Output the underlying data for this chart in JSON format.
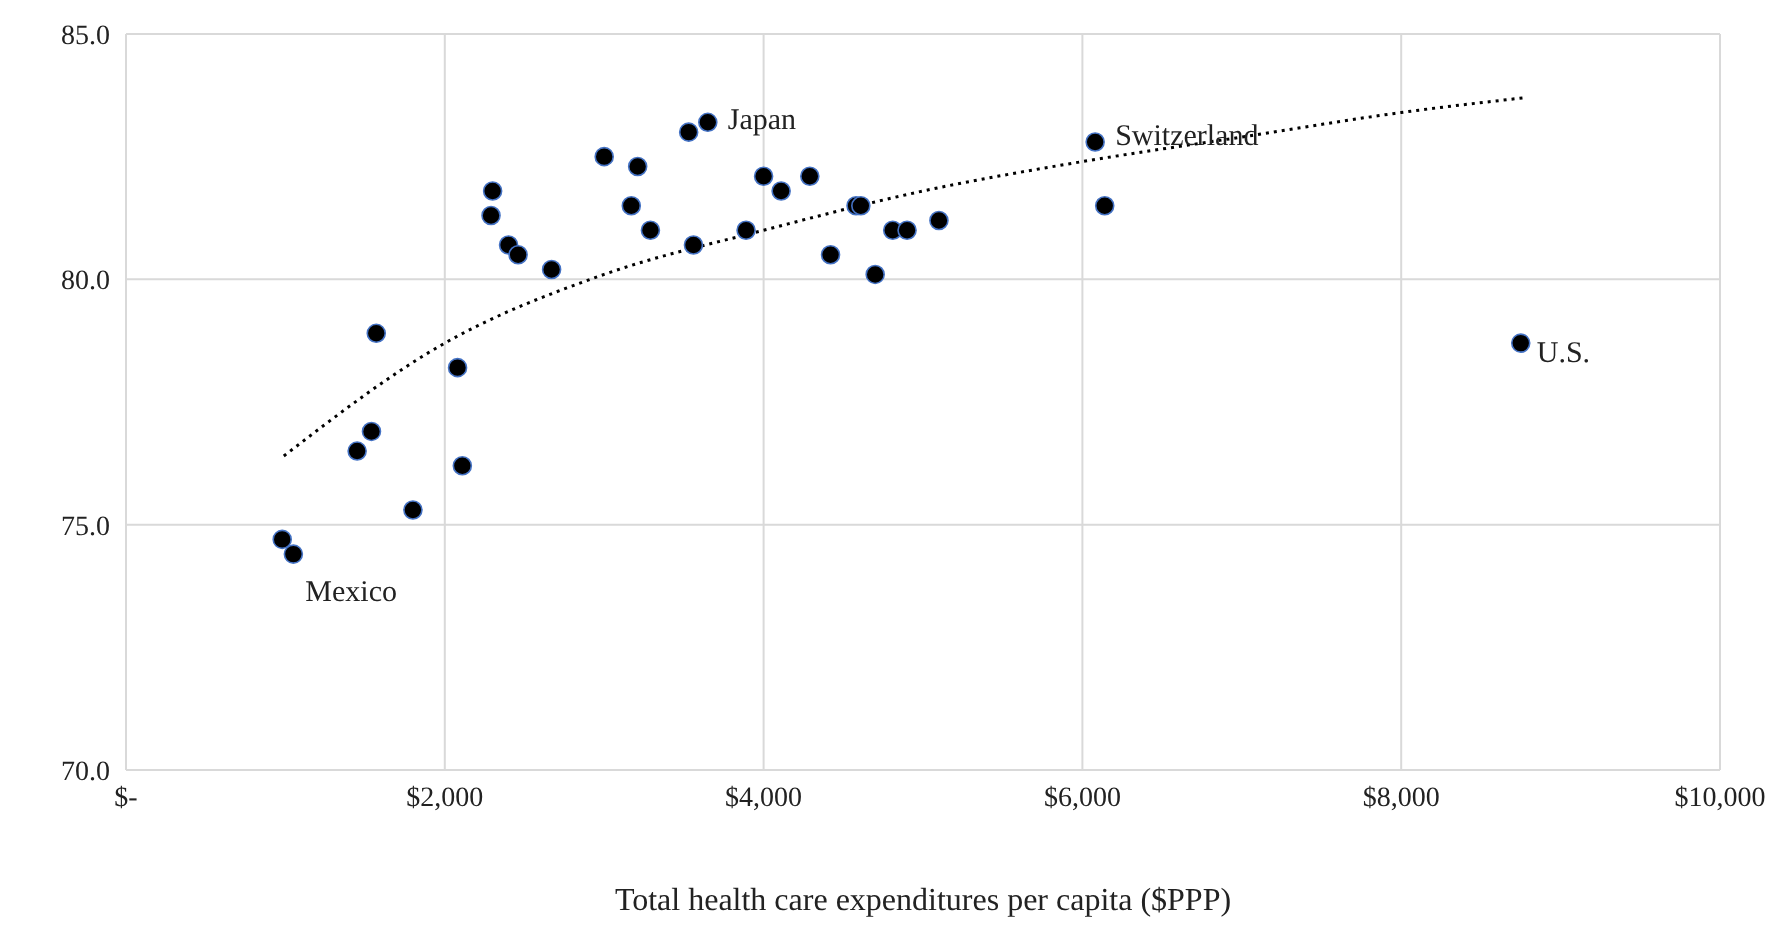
{
  "chart_data": {
    "type": "scatter",
    "xlabel": "Total health care expenditures per capita ($PPP)",
    "xlim": [
      0,
      10000
    ],
    "xticks": [
      {
        "value": 0,
        "label": "$-"
      },
      {
        "value": 2000,
        "label": "$2,000"
      },
      {
        "value": 4000,
        "label": "$4,000"
      },
      {
        "value": 6000,
        "label": "$6,000"
      },
      {
        "value": 8000,
        "label": "$8,000"
      },
      {
        "value": 10000,
        "label": "$10,000"
      }
    ],
    "ylim": [
      70,
      85
    ],
    "yticks": [
      {
        "value": 70,
        "label": "70.0"
      },
      {
        "value": 75,
        "label": "75.0"
      },
      {
        "value": 80,
        "label": "80.0"
      },
      {
        "value": 85,
        "label": "85.0"
      }
    ],
    "grid": true,
    "legend": false,
    "series": [
      {
        "color": "#000000",
        "marker": "circle",
        "x": [
          980,
          1050,
          1450,
          1540,
          1570,
          1800,
          2080,
          2110,
          2290,
          2300,
          2400,
          2460,
          2670,
          3000,
          3170,
          3210,
          3290,
          3530,
          3560,
          3650,
          3890,
          4000,
          4110,
          4290,
          4420,
          4580,
          4610,
          4700,
          4810,
          4900,
          5100,
          6080,
          6140,
          8750
        ],
        "values": [
          74.7,
          74.4,
          76.5,
          76.9,
          78.9,
          75.3,
          78.2,
          76.2,
          81.3,
          81.8,
          80.7,
          80.5,
          80.2,
          82.5,
          81.5,
          82.3,
          81.0,
          83.0,
          80.7,
          83.2,
          81.0,
          82.1,
          81.8,
          82.1,
          80.5,
          81.5,
          81.5,
          80.1,
          81.0,
          81.0,
          81.2,
          82.8,
          81.5,
          78.7
        ]
      },
      {
        "type": "line",
        "color": "#000000",
        "line_style": "dotted",
        "marker": "none",
        "x": [
          990,
          2000,
          3000,
          4000,
          5000,
          6000,
          7000,
          8000,
          8770
        ],
        "values": [
          76.4,
          78.7,
          80.1,
          81.0,
          81.8,
          82.4,
          82.9,
          83.4,
          83.7
        ]
      }
    ],
    "annotations": [
      {
        "text": "Japan",
        "x": 3650,
        "y": 83.2
      },
      {
        "text": "Switzerland",
        "x": 6080,
        "y": 82.8
      },
      {
        "text": "U.S.",
        "x": 8750,
        "y": 78.7
      },
      {
        "text": "Mexico",
        "x": 1050,
        "y": 74.4
      }
    ]
  }
}
